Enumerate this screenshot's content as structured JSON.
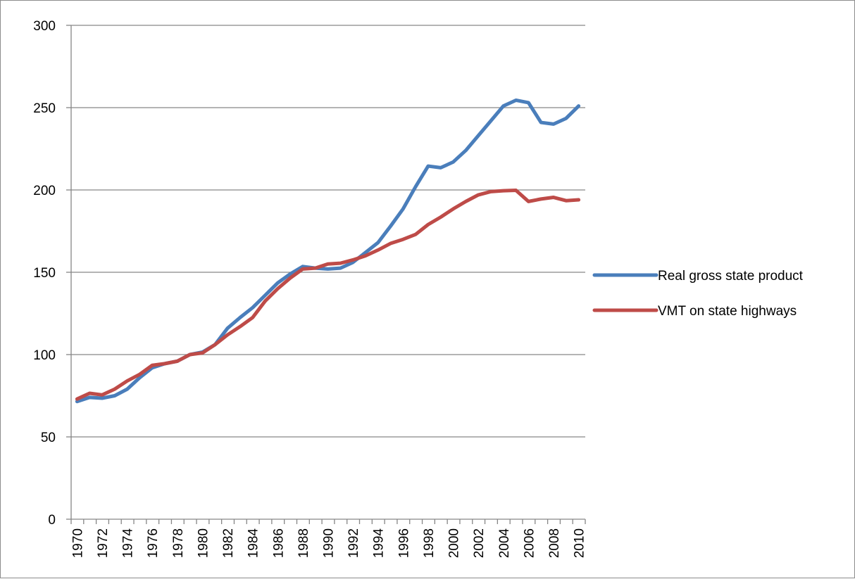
{
  "chart_data": {
    "type": "line",
    "title": "",
    "xlabel": "",
    "ylabel": "",
    "ylim": [
      0,
      300
    ],
    "yticks": [
      0,
      50,
      100,
      150,
      200,
      250,
      300
    ],
    "x": [
      1970,
      1971,
      1972,
      1973,
      1974,
      1975,
      1976,
      1977,
      1978,
      1979,
      1980,
      1981,
      1982,
      1983,
      1984,
      1985,
      1986,
      1987,
      1988,
      1989,
      1990,
      1991,
      1992,
      1993,
      1994,
      1995,
      1996,
      1997,
      1998,
      1999,
      2000,
      2001,
      2002,
      2003,
      2004,
      2005,
      2006,
      2007,
      2008,
      2009,
      2010
    ],
    "xtick_labels": [
      "1970",
      "1972",
      "1974",
      "1976",
      "1978",
      "1980",
      "1982",
      "1984",
      "1986",
      "1988",
      "1990",
      "1992",
      "1994",
      "1996",
      "1998",
      "2000",
      "2002",
      "2004",
      "2006",
      "2008",
      "2010"
    ],
    "grid": true,
    "legend_position": "right",
    "series": [
      {
        "name": "Real gross state product",
        "color": "#4a7ebb",
        "values": [
          71.5,
          74,
          73.5,
          75,
          79,
          86,
          92,
          94.5,
          96,
          100,
          101.5,
          106,
          116,
          122.5,
          128.5,
          136,
          143.5,
          149,
          153.5,
          152.5,
          152,
          152.5,
          156,
          162,
          168,
          178,
          188.5,
          202,
          214.5,
          213.5,
          217,
          224,
          233,
          242,
          251,
          254.5,
          253,
          241,
          240,
          243.5,
          251
        ]
      },
      {
        "name": "VMT on state highways",
        "color": "#be4b48",
        "values": [
          73,
          76.5,
          75.5,
          79,
          84,
          88,
          93.5,
          94.5,
          96,
          100,
          101,
          106,
          112,
          117,
          122.5,
          132.5,
          140,
          146.5,
          152,
          152.5,
          155,
          155.5,
          157.5,
          160,
          163.5,
          167.5,
          170,
          173,
          179,
          183.5,
          188.5,
          193,
          197,
          199,
          199.5,
          199.8,
          193,
          194.5,
          195.5,
          193.5,
          194
        ]
      }
    ]
  }
}
